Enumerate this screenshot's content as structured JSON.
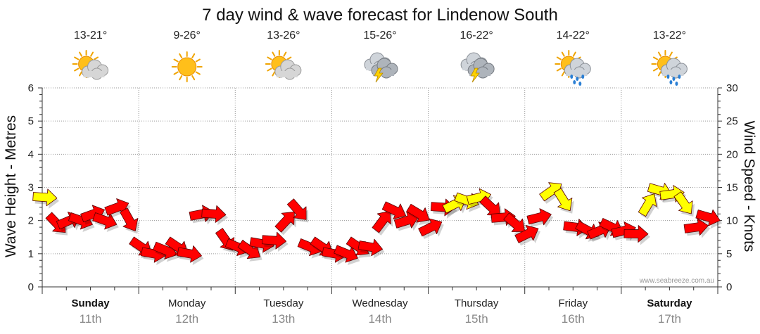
{
  "chart_data": {
    "type": "line",
    "title": "7 day wind & wave forecast for Lindenow South",
    "ylabel_left": "Wave Height - Metres",
    "ylabel_right": "Wind Speed - Knots",
    "ylim_left": [
      0,
      6
    ],
    "ylim_right": [
      0,
      30
    ],
    "left_ticks": [
      "0",
      "1",
      "2",
      "3",
      "4",
      "5",
      "6"
    ],
    "right_ticks": [
      "0",
      "5",
      "10",
      "15",
      "20",
      "25",
      "30"
    ],
    "grid": true,
    "days": [
      {
        "day": "Sunday",
        "date": "11th",
        "temp": "13-21°",
        "icon": "partly-cloudy-icon",
        "bold": true
      },
      {
        "day": "Monday",
        "date": "12th",
        "temp": "9-26°",
        "icon": "sunny-icon",
        "bold": false
      },
      {
        "day": "Tuesday",
        "date": "13th",
        "temp": "13-26°",
        "icon": "partly-cloudy-icon",
        "bold": false
      },
      {
        "day": "Wednesday",
        "date": "14th",
        "temp": "15-26°",
        "icon": "thunderstorm-icon",
        "bold": false
      },
      {
        "day": "Thursday",
        "date": "15th",
        "temp": "16-22°",
        "icon": "thunderstorm-icon",
        "bold": false
      },
      {
        "day": "Friday",
        "date": "16th",
        "temp": "14-22°",
        "icon": "sun-showers-icon",
        "bold": false
      },
      {
        "day": "Saturday",
        "date": "17th",
        "temp": "13-22°",
        "icon": "sun-showers-icon",
        "bold": true
      }
    ],
    "wind_series": {
      "name": "Wind speed (knots)",
      "x_hours": [
        0,
        3,
        6,
        9,
        12,
        15,
        18,
        21,
        24,
        27,
        30,
        33,
        36,
        39,
        42,
        45,
        48,
        51,
        54,
        57,
        60,
        63,
        66,
        69,
        72,
        75,
        78,
        81,
        84,
        87,
        90,
        93,
        96,
        99,
        102,
        105,
        108,
        111,
        114,
        117,
        120,
        123,
        126,
        129,
        132,
        135,
        138,
        141,
        144,
        147,
        150,
        153,
        156,
        159,
        162,
        165
      ],
      "knots": [
        13.5,
        9.5,
        10,
        10,
        11,
        10,
        12,
        10,
        6,
        5,
        5.5,
        6,
        5,
        11,
        11,
        7,
        6,
        5.5,
        6.5,
        7,
        10,
        11.5,
        6,
        6,
        5,
        5,
        6,
        6,
        10,
        11.5,
        10,
        11,
        9,
        12,
        12.5,
        13,
        13.5,
        12,
        10.5,
        9.5,
        8,
        10.5,
        14.5,
        13,
        9,
        8.5,
        8.5,
        9,
        8.5,
        8,
        12.5,
        14.5,
        14,
        12.5,
        9,
        10.5
      ],
      "gust_threshold_knots": 12.5,
      "colors": {
        "calm": "#ff0000",
        "strong": "#ffff00"
      }
    },
    "watermark": "www.seabreeze.com.au"
  }
}
